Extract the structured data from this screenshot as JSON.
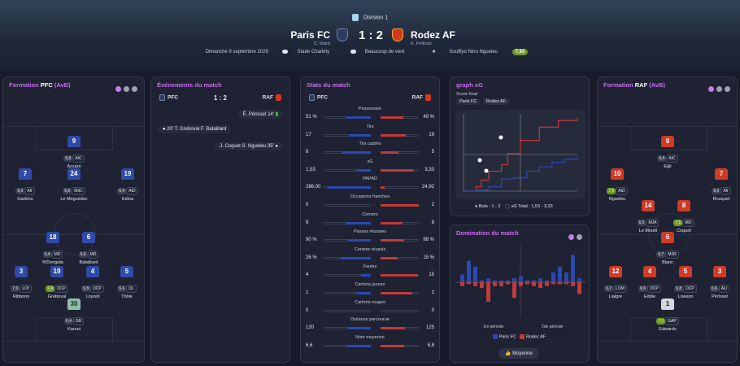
{
  "header": {
    "competition": "Division 1",
    "home": {
      "name": "Paris FC",
      "coach": "C. Ward"
    },
    "away": {
      "name": "Rodez AF",
      "coach": "K. Petlovic"
    },
    "score": "1 : 2",
    "date": "Dimanche 9 septembre 2029",
    "stadium": "Stade Charléty",
    "weather": "Beaucoup de vent",
    "motm": "Souffiyo Nino Ngueleu",
    "motm_rating": "7,93"
  },
  "formation_home": {
    "title_prefix": "Formation",
    "team": "PFC",
    "suffix": "(AvB)",
    "players": [
      {
        "num": "9",
        "rating": "6,8",
        "pos": "AtC",
        "name": "Azzaro",
        "good": false
      },
      {
        "num": "7",
        "rating": "6,9",
        "pos": "AtI",
        "name": "Garbino",
        "good": false
      },
      {
        "num": "24",
        "rating": "6,6",
        "pos": "MdC",
        "name": "Le Moguédec",
        "good": false
      },
      {
        "num": "19",
        "rating": "6,4",
        "pos": "AtD",
        "name": "Edina",
        "good": false
      },
      {
        "num": "18",
        "rating": "6,4",
        "pos": "MD",
        "name": "N'Dongala",
        "good": false
      },
      {
        "num": "6",
        "rating": "6,6",
        "pos": "MD",
        "name": "Bataillard",
        "good": false
      },
      {
        "num": "3",
        "rating": "7,0",
        "pos": "LOf",
        "name": "Ribbono",
        "good": false
      },
      {
        "num": "19",
        "rating": "7,4",
        "pos": "DCP",
        "name": "Greboval",
        "good": true
      },
      {
        "num": "4",
        "rating": "6,8",
        "pos": "DCP",
        "name": "Loyzell",
        "good": false
      },
      {
        "num": "5",
        "rating": "6,6",
        "pos": "DL",
        "name": "Thôle",
        "good": false
      },
      {
        "num": "30",
        "rating": "6,4",
        "pos": "GB",
        "name": "Karoui",
        "good": false
      }
    ]
  },
  "formation_away": {
    "title_prefix": "Formation",
    "team": "RAF",
    "suffix": "(AvB)",
    "players": [
      {
        "num": "9",
        "rating": "6,4",
        "pos": "AtC",
        "name": "Egli",
        "good": false
      },
      {
        "num": "10",
        "rating": "7,9",
        "pos": "AtD",
        "name": "Ngueleu",
        "good": true
      },
      {
        "num": "7",
        "rating": "6,6",
        "pos": "AtI",
        "name": "Rouquet",
        "good": false
      },
      {
        "num": "14",
        "rating": "6,5",
        "pos": "MJA",
        "name": "Le Mouël",
        "good": false
      },
      {
        "num": "8",
        "rating": "7,5",
        "pos": "MO",
        "name": "Coquet",
        "good": true
      },
      {
        "num": "6",
        "rating": "6,7",
        "pos": "MJR",
        "name": "Blanc",
        "good": false
      },
      {
        "num": "12",
        "rating": "6,7",
        "pos": "LOM",
        "name": "Lialgre",
        "good": false
      },
      {
        "num": "4",
        "rating": "6,6",
        "pos": "DCP",
        "name": "Eddie",
        "good": false
      },
      {
        "num": "5",
        "rating": "6,8",
        "pos": "DCP",
        "name": "Lowson",
        "good": false
      },
      {
        "num": "3",
        "rating": "6,6",
        "pos": "ALI",
        "name": "Pérlsset",
        "good": false
      },
      {
        "num": "1",
        "rating": "7,0",
        "pos": "GAP",
        "name": "Edwards",
        "good": true
      }
    ]
  },
  "events": {
    "title": "Événements du match",
    "home": "PFC",
    "away": "RAF",
    "score": "1 : 2",
    "list": [
      {
        "text": "É. Périsset  14'",
        "side": "away"
      },
      {
        "text": "20'  T. Greboval  F. Bataillard",
        "side": "home"
      },
      {
        "text": "J. Coquet  S. Ngueleu  35'",
        "side": "away"
      }
    ]
  },
  "stats": {
    "title": "Stats du match",
    "home": "PFC",
    "away": "RAF",
    "rows": [
      {
        "label": "Possession",
        "home": "51 %",
        "away": "49 %",
        "h": 51,
        "a": 49
      },
      {
        "label": "Tirs",
        "home": "17",
        "away": "19",
        "h": 17,
        "a": 19
      },
      {
        "label": "Tirs cadrés",
        "home": "8",
        "away": "5",
        "h": 8,
        "a": 5
      },
      {
        "label": "xG",
        "home": "1,53",
        "away": "3,33",
        "h": 1.53,
        "a": 3.33
      },
      {
        "label": "PAPAD",
        "home": "286,00",
        "away": "24,92",
        "h": 286,
        "a": 24.92
      },
      {
        "label": "Occasions franches",
        "home": "0",
        "away": "2",
        "h": 0,
        "a": 2
      },
      {
        "label": "Corners",
        "home": "9",
        "away": "8",
        "h": 9,
        "a": 8
      },
      {
        "label": "Passes réussies",
        "home": "90 %",
        "away": "88 %",
        "h": 90,
        "a": 88
      },
      {
        "label": "Centres réussis",
        "home": "26 %",
        "away": "15 %",
        "h": 26,
        "a": 15
      },
      {
        "label": "Fautes",
        "home": "4",
        "away": "15",
        "h": 4,
        "a": 15
      },
      {
        "label": "Cartons jaunes",
        "home": "1",
        "away": "2",
        "h": 1,
        "a": 2
      },
      {
        "label": "Cartons rouges",
        "home": "0",
        "away": "0",
        "h": 0,
        "a": 0
      },
      {
        "label": "Distance parcourue",
        "home": "120",
        "away": "125",
        "h": 120,
        "a": 125
      },
      {
        "label": "Note moyenne",
        "home": "6,6",
        "away": "6,8",
        "h": 6.6,
        "a": 6.8
      }
    ]
  },
  "xg": {
    "title": "graph xG",
    "subtitle": "Score final",
    "tab_home": "Paris FC",
    "tab_away": "Rodez AF",
    "footer_goals": "Buts : 1 - 2",
    "footer_xg": "xG  Total : 1,53  -  3,33"
  },
  "domination": {
    "title": "Domination du match",
    "label_first": "1re période",
    "label_second": "2de période",
    "legend_home": "Paris FC",
    "legend_away": "Rodez AF",
    "average_button": "Moyenne"
  },
  "chart_data": [
    {
      "type": "line",
      "title": "graph xG",
      "series": [
        {
          "name": "Paris FC",
          "x": [
            0,
            10,
            20,
            30,
            40,
            50,
            60,
            70,
            80,
            90
          ],
          "values": [
            0,
            0.05,
            0.2,
            0.55,
            0.6,
            0.9,
            1.1,
            1.3,
            1.45,
            1.53
          ]
        },
        {
          "name": "Rodez AF",
          "x": [
            0,
            10,
            14,
            20,
            30,
            35,
            45,
            60,
            75,
            90
          ],
          "values": [
            0,
            0.2,
            0.5,
            0.9,
            1.2,
            1.7,
            2.3,
            2.9,
            3.2,
            3.33
          ]
        }
      ]
    },
    {
      "type": "bar",
      "title": "Domination du match",
      "series": [
        {
          "name": "Paris FC",
          "values": [
            0.2,
            0.55,
            0.4,
            0.05,
            0.1,
            0.05,
            0.05,
            0.05,
            0.1,
            0.15,
            0.05,
            0.05,
            0.1,
            0.05,
            0.25,
            0.4,
            0.25,
            0.7,
            0.1
          ]
        },
        {
          "name": "Rodez AF",
          "values": [
            0.1,
            0.05,
            0.1,
            0.15,
            0.5,
            0.1,
            0.1,
            0.05,
            0.4,
            0.1,
            0.05,
            0.1,
            0.15,
            0.1,
            0.05,
            0.05,
            0.05,
            0.1,
            0.3
          ]
        }
      ]
    }
  ]
}
